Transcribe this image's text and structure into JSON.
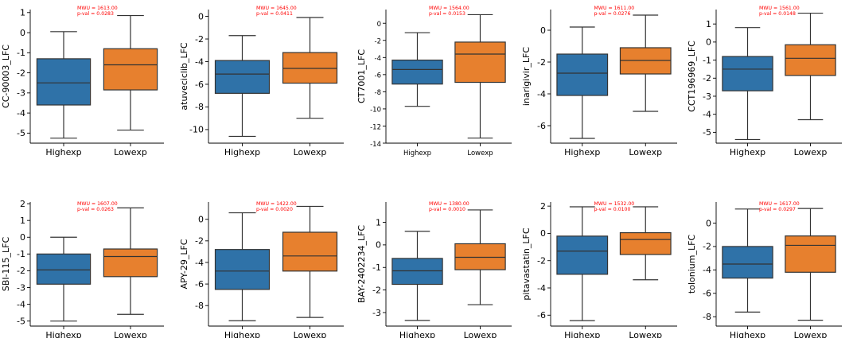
{
  "colors": {
    "high": "#2f72a8",
    "low": "#e7802e",
    "stat": "#ff0000",
    "axis": "#000000",
    "line": "#333333"
  },
  "chart_data": [
    {
      "type": "box",
      "ylabel": "CC-90003_LFC",
      "categories": [
        "Highexp",
        "Lowexp"
      ],
      "ylim": [
        -5.5,
        1.15
      ],
      "yticks": [
        1,
        0,
        -1,
        -2,
        -3,
        -4,
        -5
      ],
      "boxes": [
        {
          "whislo": -5.25,
          "q1": -3.6,
          "med": -2.5,
          "q3": -1.3,
          "whishi": 0.05
        },
        {
          "whislo": -4.85,
          "q1": -2.85,
          "med": -1.6,
          "q3": -0.8,
          "whishi": 0.85
        }
      ],
      "mwu": "MWU = 1613.00",
      "pval": "p-val = 0.0283"
    },
    {
      "type": "box",
      "ylabel": "atuveciclib_LFC",
      "categories": [
        "Highexp",
        "Lowexp"
      ],
      "ylim": [
        -11.2,
        0.6
      ],
      "yticks": [
        0,
        -2,
        -4,
        -6,
        -8,
        -10
      ],
      "boxes": [
        {
          "whislo": -10.6,
          "q1": -6.8,
          "med": -5.1,
          "q3": -3.9,
          "whishi": -1.7
        },
        {
          "whislo": -9.0,
          "q1": -5.9,
          "med": -4.6,
          "q3": -3.2,
          "whishi": -0.1
        }
      ],
      "mwu": "MWU = 1645.00",
      "pval": "p-val = 0.0411"
    },
    {
      "type": "box",
      "ylabel": "CT7001_LFC",
      "categories": [
        "Highexp",
        "Lowexp"
      ],
      "ylim": [
        -14,
        1.6
      ],
      "yticks": [
        0,
        -2,
        -4,
        -6,
        -8,
        -10,
        -12,
        -14
      ],
      "boxes": [
        {
          "whislo": -9.7,
          "q1": -7.1,
          "med": -5.4,
          "q3": -4.3,
          "whishi": -1.1
        },
        {
          "whislo": -13.4,
          "q1": -6.9,
          "med": -3.6,
          "q3": -2.2,
          "whishi": 1.0
        }
      ],
      "mwu": "MWU = 1564.00",
      "pval": "p-val = 0.0153"
    },
    {
      "type": "box",
      "ylabel": "inarigivir_LFC",
      "categories": [
        "Highexp",
        "Lowexp"
      ],
      "ylim": [
        -7.1,
        1.3
      ],
      "yticks": [
        0,
        -2,
        -4,
        -6
      ],
      "boxes": [
        {
          "whislo": -6.8,
          "q1": -4.1,
          "med": -2.7,
          "q3": -1.5,
          "whishi": 0.2
        },
        {
          "whislo": -5.1,
          "q1": -2.75,
          "med": -1.9,
          "q3": -1.1,
          "whishi": 0.95
        }
      ],
      "mwu": "MWU = 1611.00",
      "pval": "p-val = 0.0276"
    },
    {
      "type": "box",
      "ylabel": "CCT196969_LFC",
      "categories": [
        "Highexp",
        "Lowexp"
      ],
      "ylim": [
        -5.6,
        1.8
      ],
      "yticks": [
        1,
        0,
        -1,
        -2,
        -3,
        -4,
        -5
      ],
      "boxes": [
        {
          "whislo": -5.4,
          "q1": -2.7,
          "med": -1.5,
          "q3": -0.8,
          "whishi": 0.8
        },
        {
          "whislo": -4.3,
          "q1": -1.85,
          "med": -0.9,
          "q3": -0.15,
          "whishi": 1.6
        }
      ],
      "mwu": "MWU = 1561.00",
      "pval": "p-val = 0.0148"
    },
    {
      "type": "box",
      "ylabel": "SBI-115_LFC",
      "categories": [
        "Highexp",
        "Lowexp"
      ],
      "ylim": [
        -5.3,
        2.1
      ],
      "yticks": [
        2,
        1,
        0,
        -1,
        -2,
        -3,
        -4,
        -5
      ],
      "boxes": [
        {
          "whislo": -5.0,
          "q1": -2.8,
          "med": -1.95,
          "q3": -1.0,
          "whishi": 0.0
        },
        {
          "whislo": -4.6,
          "q1": -2.35,
          "med": -1.15,
          "q3": -0.7,
          "whishi": 1.75
        }
      ],
      "mwu": "MWU = 1607.00",
      "pval": "p-val = 0.0263"
    },
    {
      "type": "box",
      "ylabel": "APY-29_LFC",
      "categories": [
        "Highexp",
        "Lowexp"
      ],
      "ylim": [
        -9.9,
        1.6
      ],
      "yticks": [
        0,
        -2,
        -4,
        -6,
        -8
      ],
      "boxes": [
        {
          "whislo": -9.4,
          "q1": -6.5,
          "med": -4.8,
          "q3": -2.8,
          "whishi": 0.6
        },
        {
          "whislo": -9.1,
          "q1": -4.8,
          "med": -3.4,
          "q3": -1.2,
          "whishi": 1.2
        }
      ],
      "mwu": "MWU = 1422.00",
      "pval": "p-val = 0.0020"
    },
    {
      "type": "box",
      "ylabel": "BAY-2402234_LFC",
      "categories": [
        "Highexp",
        "Lowexp"
      ],
      "ylim": [
        -3.6,
        1.9
      ],
      "yticks": [
        1,
        0,
        -1,
        -2,
        -3
      ],
      "boxes": [
        {
          "whislo": -3.35,
          "q1": -1.75,
          "med": -1.15,
          "q3": -0.6,
          "whishi": 0.6
        },
        {
          "whislo": -2.65,
          "q1": -1.1,
          "med": -0.55,
          "q3": 0.05,
          "whishi": 1.55
        }
      ],
      "mwu": "MWU = 1380.00",
      "pval": "p-val = 0.0010"
    },
    {
      "type": "box",
      "ylabel": "pitavastatin_LFC",
      "categories": [
        "Highexp",
        "Lowexp"
      ],
      "ylim": [
        -6.8,
        2.3
      ],
      "yticks": [
        2,
        0,
        -2,
        -4,
        -6
      ],
      "boxes": [
        {
          "whislo": -6.4,
          "q1": -3.0,
          "med": -1.3,
          "q3": -0.2,
          "whishi": 1.95
        },
        {
          "whislo": -3.4,
          "q1": -1.55,
          "med": -0.45,
          "q3": 0.05,
          "whishi": 1.95
        }
      ],
      "mwu": "MWU = 1532.00",
      "pval": "p-val = 0.0100"
    },
    {
      "type": "box",
      "ylabel": "tolonium_LFC",
      "categories": [
        "Highexp",
        "Lowexp"
      ],
      "ylim": [
        -8.8,
        1.8
      ],
      "yticks": [
        0,
        -2,
        -4,
        -6,
        -8
      ],
      "boxes": [
        {
          "whislo": -7.6,
          "q1": -4.7,
          "med": -3.5,
          "q3": -2.0,
          "whishi": 1.2
        },
        {
          "whislo": -8.3,
          "q1": -4.2,
          "med": -1.9,
          "q3": -1.1,
          "whishi": 1.25
        }
      ],
      "mwu": "MWU = 1617.00",
      "pval": "p-val = 0.0297"
    }
  ]
}
